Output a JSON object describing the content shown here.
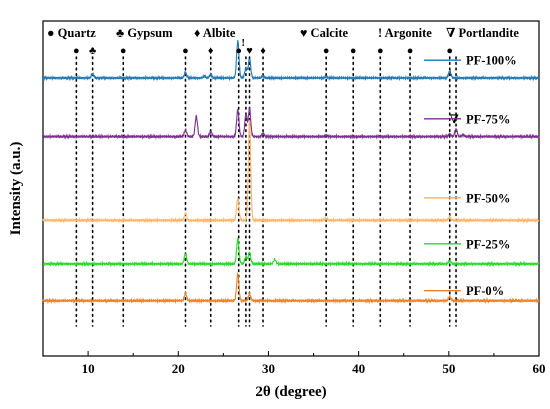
{
  "chart_data": {
    "type": "line",
    "xlabel": "2θ (degree)",
    "ylabel": "Intensity (a.u.)",
    "xlim": [
      5,
      60
    ],
    "xticks": [
      10,
      20,
      30,
      40,
      50,
      60
    ],
    "yticks_shown": false,
    "grid": false,
    "legend_placement": "right, beside each trace",
    "phase_legend": [
      {
        "symbol": "●",
        "name": "Quartz"
      },
      {
        "symbol": "♣",
        "name": "Gypsum"
      },
      {
        "symbol": "♦",
        "name": "Albite"
      },
      {
        "symbol": "♥",
        "name": "Calcite"
      },
      {
        "symbol": "!",
        "name": "Argonite"
      },
      {
        "symbol": "∇",
        "name": "Portlandite"
      }
    ],
    "reference_lines": [
      8.7,
      10.5,
      13.9,
      20.8,
      23.6,
      26.7,
      27.5,
      27.9,
      29.4,
      36.4,
      39.4,
      42.4,
      45.7,
      50.1,
      50.8
    ],
    "peak_markers": [
      {
        "x": 8.7,
        "symbol": "●"
      },
      {
        "x": 10.5,
        "symbol": "♣"
      },
      {
        "x": 13.9,
        "symbol": "●"
      },
      {
        "x": 20.8,
        "symbol": "●"
      },
      {
        "x": 23.6,
        "symbol": "♦"
      },
      {
        "x": 26.7,
        "symbol": "●"
      },
      {
        "x": 27.2,
        "symbol": "!"
      },
      {
        "x": 27.9,
        "symbol": "♥"
      },
      {
        "x": 29.4,
        "symbol": "♦"
      },
      {
        "x": 36.4,
        "symbol": "●"
      },
      {
        "x": 39.4,
        "symbol": "●"
      },
      {
        "x": 42.4,
        "symbol": "●"
      },
      {
        "x": 45.7,
        "symbol": "●"
      },
      {
        "x": 50.1,
        "symbol": "●"
      },
      {
        "x": 50.6,
        "symbol": "∇"
      }
    ],
    "series": [
      {
        "name": "PF-100%",
        "color": "#1f77b4",
        "baseline": 0.83,
        "peaks": [
          [
            10.5,
            0.012
          ],
          [
            20.8,
            0.015
          ],
          [
            22.9,
            0.005
          ],
          [
            23.6,
            0.01
          ],
          [
            26.6,
            0.11
          ],
          [
            27.5,
            0.03
          ],
          [
            27.9,
            0.058
          ],
          [
            29.4,
            0.006
          ],
          [
            36.4,
            0.004
          ],
          [
            50.1,
            0.02
          ]
        ]
      },
      {
        "name": "PF-75%",
        "color": "#7b2f8e",
        "baseline": 0.655,
        "peaks": [
          [
            20.8,
            0.02
          ],
          [
            22.0,
            0.06
          ],
          [
            23.6,
            0.015
          ],
          [
            26.6,
            0.08
          ],
          [
            27.5,
            0.065
          ],
          [
            27.9,
            0.085
          ],
          [
            29.4,
            0.01
          ],
          [
            36.4,
            0.004
          ],
          [
            50.1,
            0.008
          ],
          [
            50.8,
            0.022
          ],
          [
            51.6,
            0.005
          ]
        ]
      },
      {
        "name": "PF-50%",
        "color": "#fdb56b",
        "baseline": 0.405,
        "peaks": [
          [
            20.8,
            0.02
          ],
          [
            26.6,
            0.065
          ],
          [
            27.9,
            0.3
          ],
          [
            36.4,
            0.005
          ],
          [
            50.1,
            0.01
          ]
        ]
      },
      {
        "name": "PF-25%",
        "color": "#22dd22",
        "baseline": 0.275,
        "peaks": [
          [
            20.8,
            0.03
          ],
          [
            26.6,
            0.075
          ],
          [
            27.5,
            0.02
          ],
          [
            27.9,
            0.035
          ],
          [
            30.7,
            0.013
          ],
          [
            50.1,
            0.01
          ]
        ]
      },
      {
        "name": "PF-0%",
        "color": "#e8822a",
        "baseline": 0.165,
        "peaks": [
          [
            20.8,
            0.022
          ],
          [
            26.6,
            0.08
          ],
          [
            27.9,
            0.02
          ],
          [
            50.1,
            0.012
          ]
        ]
      }
    ]
  }
}
